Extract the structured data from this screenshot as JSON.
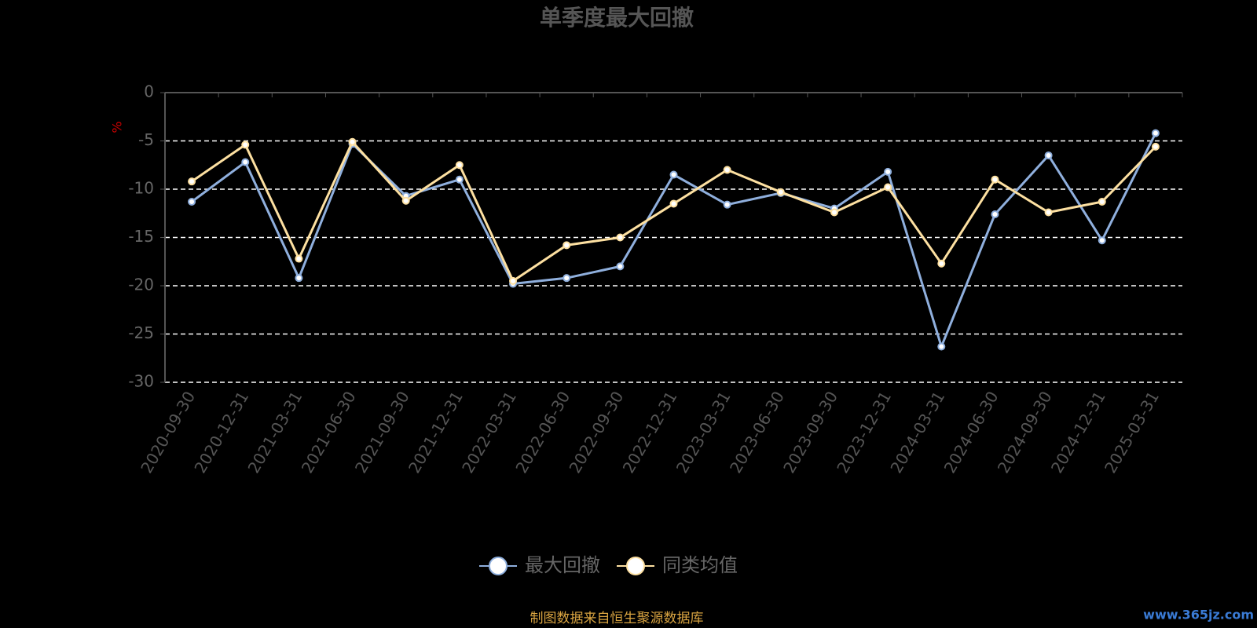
{
  "chart_data": {
    "type": "line",
    "title": "单季度最大回撤",
    "y_label": "%",
    "categories": [
      "2020-09-30",
      "2020-12-31",
      "2021-03-31",
      "2021-06-30",
      "2021-09-30",
      "2021-12-31",
      "2022-03-31",
      "2022-06-30",
      "2022-09-30",
      "2022-12-31",
      "2023-03-31",
      "2023-06-30",
      "2023-09-30",
      "2023-12-31",
      "2024-03-31",
      "2024-06-30",
      "2024-09-30",
      "2024-12-31",
      "2025-03-31"
    ],
    "series": [
      {
        "name": "最大回撤",
        "color": "#8fafdd",
        "values": [
          -11.3,
          -7.2,
          -19.2,
          -5.3,
          -10.7,
          -9.0,
          -19.8,
          -19.2,
          -18.0,
          -8.5,
          -11.6,
          -10.4,
          -12.0,
          -8.2,
          -26.3,
          -12.6,
          -6.5,
          -15.3,
          -4.2
        ]
      },
      {
        "name": "同类均值",
        "color": "#fde0a1",
        "values": [
          -9.2,
          -5.4,
          -17.2,
          -5.1,
          -11.2,
          -7.5,
          -19.5,
          -15.8,
          -15.0,
          -11.5,
          -8.0,
          -10.3,
          -12.4,
          -9.8,
          -17.7,
          -9.0,
          -12.4,
          -11.3,
          -5.6
        ]
      }
    ],
    "ylim": [
      -30,
      0
    ],
    "yticks": [
      0,
      -5,
      -10,
      -15,
      -20,
      -25,
      -30
    ],
    "grid": true,
    "source_note": "制图数据来自恒生聚源数据库",
    "watermark": "www.365jz.com"
  }
}
